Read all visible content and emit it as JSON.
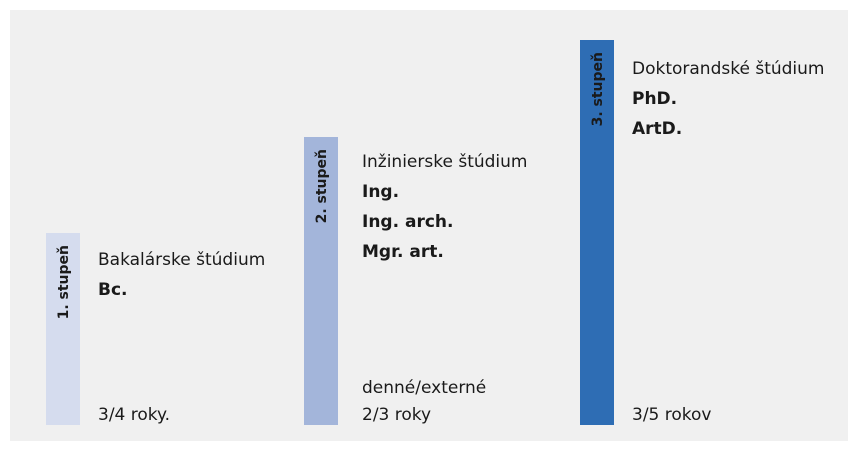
{
  "levels": [
    {
      "label": "1. stupeň",
      "title": "Bakalárske štúdium",
      "degrees": [
        "Bc."
      ],
      "duration": "3/4 roky."
    },
    {
      "label": "2. stupeň",
      "title": "Inžinierske štúdium",
      "degrees": [
        "Ing.",
        "Ing. arch.",
        "Mgr. art."
      ],
      "note": "denné/externé",
      "duration": "2/3 roky"
    },
    {
      "label": "3. stupeň",
      "title": "Doktorandské štúdium",
      "degrees": [
        "PhD.",
        "ArtD."
      ],
      "duration": "3/5 rokov"
    }
  ]
}
